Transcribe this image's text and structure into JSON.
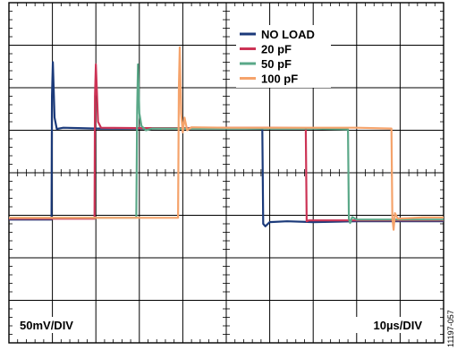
{
  "chart_data": {
    "type": "line",
    "title": "",
    "grid": true,
    "legend_position": "top-right",
    "x_divisions": 10,
    "y_divisions": 8,
    "x_scale_label": "10µs/DIV",
    "y_scale_label": "50mV/DIV",
    "figure_id": "11197-057",
    "x_unit": "div",
    "y_unit": "div",
    "xlim": [
      0,
      10
    ],
    "ylim": [
      0,
      8
    ],
    "series": [
      {
        "name": "NO LOAD",
        "color": "#1b3a7a",
        "points": [
          [
            0,
            2.9
          ],
          [
            0.98,
            2.9
          ],
          [
            0.99,
            5.8
          ],
          [
            1.01,
            6.6
          ],
          [
            1.05,
            5.3
          ],
          [
            1.1,
            5.03
          ],
          [
            1.25,
            5.06
          ],
          [
            1.6,
            5.05
          ],
          [
            2.0,
            5.04
          ],
          [
            3.0,
            5.04
          ],
          [
            4.0,
            5.05
          ],
          [
            5.0,
            5.05
          ],
          [
            5.83,
            5.04
          ],
          [
            5.85,
            2.8
          ],
          [
            5.9,
            2.74
          ],
          [
            6.0,
            2.84
          ],
          [
            6.4,
            2.86
          ],
          [
            7.0,
            2.84
          ],
          [
            8.0,
            2.86
          ],
          [
            9.0,
            2.86
          ],
          [
            10.0,
            2.86
          ]
        ]
      },
      {
        "name": "20 pF",
        "color": "#cc3355",
        "points": [
          [
            0,
            2.92
          ],
          [
            1.97,
            2.92
          ],
          [
            1.98,
            5.8
          ],
          [
            2.0,
            6.55
          ],
          [
            2.05,
            5.2
          ],
          [
            2.12,
            5.06
          ],
          [
            3.0,
            5.05
          ],
          [
            4.0,
            5.05
          ],
          [
            5.0,
            5.06
          ],
          [
            6.0,
            5.06
          ],
          [
            6.83,
            5.05
          ],
          [
            6.85,
            2.86
          ],
          [
            6.9,
            2.88
          ],
          [
            7.5,
            2.88
          ],
          [
            8.0,
            2.88
          ],
          [
            9.0,
            2.88
          ],
          [
            10.0,
            2.88
          ]
        ]
      },
      {
        "name": "50 pF",
        "color": "#5aa888",
        "points": [
          [
            0,
            2.94
          ],
          [
            2.93,
            2.94
          ],
          [
            2.95,
            5.5
          ],
          [
            2.97,
            6.55
          ],
          [
            3.0,
            5.4
          ],
          [
            3.05,
            5.1
          ],
          [
            3.15,
            5.0
          ],
          [
            3.3,
            5.04
          ],
          [
            4.0,
            5.04
          ],
          [
            5.0,
            5.04
          ],
          [
            6.0,
            5.04
          ],
          [
            7.0,
            5.04
          ],
          [
            7.8,
            5.02
          ],
          [
            7.82,
            2.92
          ],
          [
            7.85,
            2.82
          ],
          [
            7.9,
            2.96
          ],
          [
            8.0,
            2.9
          ],
          [
            9.0,
            2.9
          ],
          [
            10.0,
            2.9
          ]
        ]
      },
      {
        "name": "100 pF",
        "color": "#f5a36b",
        "points": [
          [
            0,
            2.94
          ],
          [
            3.89,
            2.94
          ],
          [
            3.91,
            6.0
          ],
          [
            3.93,
            6.95
          ],
          [
            3.96,
            5.4
          ],
          [
            4.0,
            4.95
          ],
          [
            4.04,
            5.3
          ],
          [
            4.1,
            5.0
          ],
          [
            4.2,
            5.07
          ],
          [
            5.0,
            5.06
          ],
          [
            6.0,
            5.06
          ],
          [
            7.0,
            5.06
          ],
          [
            8.0,
            5.06
          ],
          [
            8.8,
            5.04
          ],
          [
            8.82,
            2.95
          ],
          [
            8.85,
            2.66
          ],
          [
            8.88,
            3.05
          ],
          [
            8.95,
            2.92
          ],
          [
            9.5,
            2.95
          ],
          [
            10.0,
            2.95
          ]
        ]
      }
    ]
  }
}
